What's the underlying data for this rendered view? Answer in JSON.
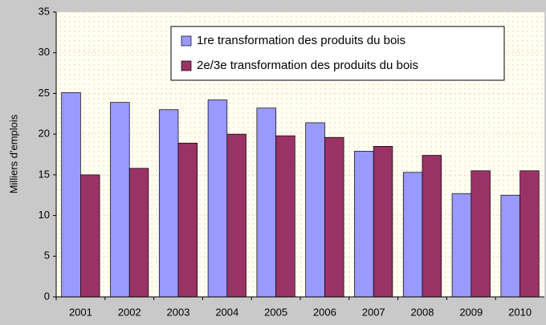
{
  "chart_data": {
    "type": "bar",
    "ylabel": "Milliers d'emplois",
    "categories": [
      "2001",
      "2002",
      "2003",
      "2004",
      "2005",
      "2006",
      "2007",
      "2008",
      "2009",
      "2010"
    ],
    "series": [
      {
        "name": "1re transformation des produits du bois",
        "color": "#9999ff",
        "values": [
          25.1,
          23.9,
          23.0,
          24.2,
          23.2,
          21.4,
          17.9,
          15.3,
          12.7,
          12.5
        ]
      },
      {
        "name": "2e/3e transformation des produits du bois",
        "color": "#993366",
        "values": [
          15.0,
          15.8,
          18.9,
          20.0,
          19.8,
          19.6,
          18.5,
          17.4,
          15.5,
          15.5
        ]
      }
    ],
    "ylim": [
      0,
      35
    ],
    "yticks": [
      0,
      5,
      10,
      15,
      20,
      25,
      30,
      35
    ],
    "grid": true,
    "legend": "top-right"
  }
}
